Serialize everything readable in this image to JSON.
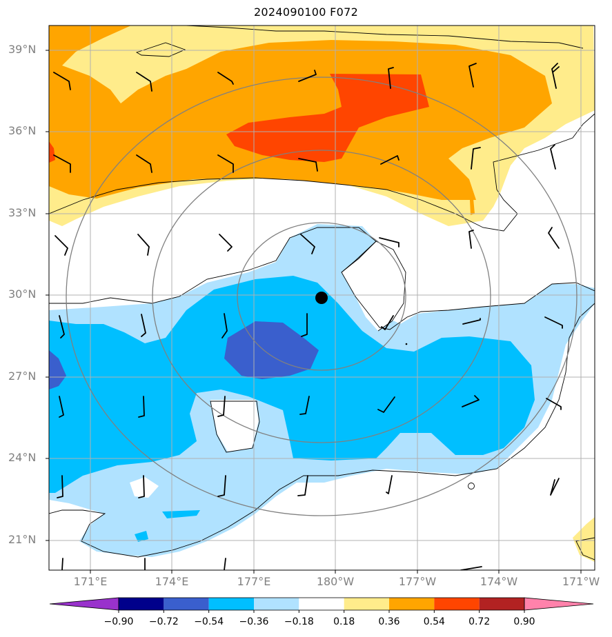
{
  "title": "2024090100 F072",
  "lat_labels": [
    "39°N",
    "36°N",
    "33°N",
    "30°N",
    "27°N",
    "24°N",
    "21°N"
  ],
  "lon_labels": [
    "171°E",
    "174°E",
    "177°E",
    "180°W",
    "177°W",
    "174°W",
    "171°W"
  ],
  "colorbar": {
    "labels": [
      "−0.90",
      "−0.72",
      "−0.54",
      "−0.36",
      "−0.18",
      "0.18",
      "0.36",
      "0.54",
      "0.72",
      "0.90"
    ],
    "colors": [
      "#9932cc",
      "#00008b",
      "#3a5fcd",
      "#00bfff",
      "#b0e2ff",
      "#ffffff",
      "#ffec8b",
      "#ffa500",
      "#ff4500",
      "#b22222",
      "#ff82ab"
    ]
  },
  "colors": {
    "gridline": "#b0b0b0",
    "range_ring": "#808080",
    "contour": "#000000",
    "center_marker": "#000000"
  }
}
